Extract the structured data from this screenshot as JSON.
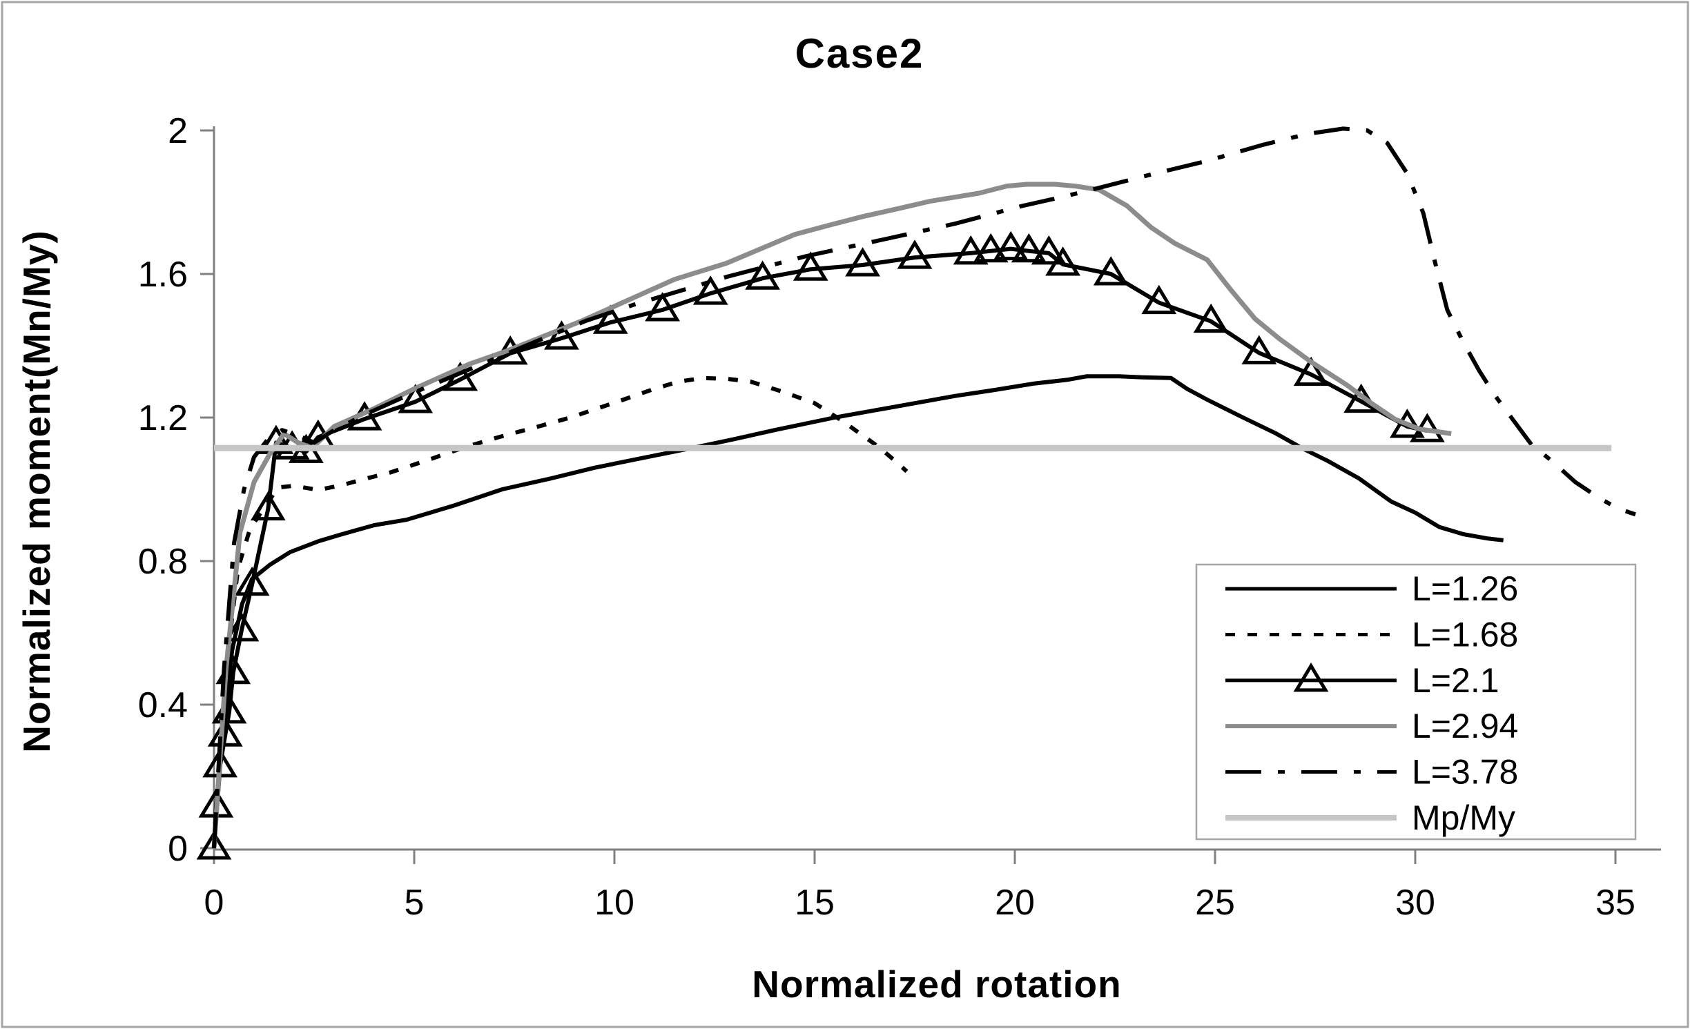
{
  "chart_data": {
    "type": "line",
    "title": "Case2",
    "xlabel": "Normalized rotation",
    "ylabel": "Normalized moment(Mn/My)",
    "xlim": [
      0,
      36.1
    ],
    "ylim": [
      0,
      2.01
    ],
    "x_ticks": [
      0,
      5,
      10,
      15,
      20,
      25,
      30,
      35
    ],
    "x_tick_labels": [
      "0",
      "5",
      "10",
      "15",
      "20",
      "25",
      "30",
      "35"
    ],
    "y_ticks": [
      0,
      0.4,
      0.8,
      1.2,
      1.6,
      2
    ],
    "y_tick_labels": [
      "0",
      "0.4",
      "0.8",
      "1.2",
      "1.6",
      "2"
    ],
    "grid": false,
    "legend_position": "bottom-right",
    "axis_color": "#808080",
    "series": [
      {
        "name": "L=1.26",
        "color": "#000000",
        "dash": "solid",
        "width": 6,
        "marker": "none",
        "points": [
          [
            0,
            0
          ],
          [
            0.2,
            0.3
          ],
          [
            0.45,
            0.55
          ],
          [
            0.7,
            0.68
          ],
          [
            0.95,
            0.75
          ],
          [
            1.4,
            0.79
          ],
          [
            1.9,
            0.825
          ],
          [
            2.6,
            0.855
          ],
          [
            3.2,
            0.875
          ],
          [
            4.0,
            0.9
          ],
          [
            4.8,
            0.915
          ],
          [
            6.0,
            0.955
          ],
          [
            7.2,
            1.0
          ],
          [
            8.4,
            1.03
          ],
          [
            9.5,
            1.06
          ],
          [
            10.6,
            1.085
          ],
          [
            11.8,
            1.112
          ],
          [
            13.0,
            1.14
          ],
          [
            14.0,
            1.165
          ],
          [
            15.5,
            1.2
          ],
          [
            17.0,
            1.23
          ],
          [
            18.5,
            1.26
          ],
          [
            19.5,
            1.277
          ],
          [
            20.5,
            1.295
          ],
          [
            21.3,
            1.305
          ],
          [
            21.8,
            1.315
          ],
          [
            22.6,
            1.315
          ],
          [
            23.2,
            1.312
          ],
          [
            23.9,
            1.31
          ],
          [
            24.3,
            1.28
          ],
          [
            24.8,
            1.25
          ],
          [
            25.7,
            1.2
          ],
          [
            26.5,
            1.157
          ],
          [
            27.2,
            1.113
          ],
          [
            27.8,
            1.08
          ],
          [
            28.6,
            1.03
          ],
          [
            29.4,
            0.966
          ],
          [
            30.0,
            0.935
          ],
          [
            30.6,
            0.895
          ],
          [
            31.2,
            0.875
          ],
          [
            31.8,
            0.863
          ],
          [
            32.2,
            0.858
          ]
        ]
      },
      {
        "name": "L=1.68",
        "color": "#000000",
        "dash": "dotted",
        "width": 6,
        "marker": "none",
        "points": [
          [
            0,
            0
          ],
          [
            0.3,
            0.5
          ],
          [
            0.6,
            0.78
          ],
          [
            0.9,
            0.89
          ],
          [
            1.2,
            0.94
          ],
          [
            1.6,
            1.005
          ],
          [
            2.0,
            1.01
          ],
          [
            2.6,
            0.998
          ],
          [
            3.2,
            1.012
          ],
          [
            3.8,
            1.03
          ],
          [
            4.4,
            1.047
          ],
          [
            5.3,
            1.08
          ],
          [
            6.2,
            1.115
          ],
          [
            7.1,
            1.145
          ],
          [
            8.0,
            1.172
          ],
          [
            8.9,
            1.2
          ],
          [
            10.1,
            1.245
          ],
          [
            11.0,
            1.28
          ],
          [
            11.6,
            1.3
          ],
          [
            12.2,
            1.31
          ],
          [
            12.8,
            1.308
          ],
          [
            13.4,
            1.3
          ],
          [
            14.2,
            1.272
          ],
          [
            15.0,
            1.24
          ],
          [
            15.7,
            1.19
          ],
          [
            16.2,
            1.15
          ],
          [
            16.6,
            1.118
          ],
          [
            17.0,
            1.08
          ],
          [
            17.3,
            1.05
          ]
        ]
      },
      {
        "name": "L=2.1",
        "color": "#000000",
        "dash": "solid",
        "width": 6,
        "marker": "triangle",
        "points": [
          [
            0,
            0
          ],
          [
            0.05,
            0.117
          ],
          [
            0.15,
            0.229
          ],
          [
            0.28,
            0.315
          ],
          [
            0.38,
            0.379
          ],
          [
            0.48,
            0.489
          ],
          [
            0.69,
            0.608
          ],
          [
            0.95,
            0.735
          ],
          [
            1.35,
            0.945
          ],
          [
            1.55,
            1.13
          ],
          [
            1.95,
            1.115
          ],
          [
            2.3,
            1.105
          ],
          [
            2.6,
            1.145
          ],
          [
            3.76,
            1.196
          ],
          [
            5.03,
            1.244
          ],
          [
            6.15,
            1.306
          ],
          [
            7.4,
            1.379
          ],
          [
            8.68,
            1.421
          ],
          [
            9.9,
            1.465
          ],
          [
            11.2,
            1.5
          ],
          [
            12.4,
            1.546
          ],
          [
            13.7,
            1.588
          ],
          [
            14.9,
            1.613
          ],
          [
            16.2,
            1.625
          ],
          [
            17.5,
            1.646
          ],
          [
            18.9,
            1.658
          ],
          [
            19.4,
            1.664
          ],
          [
            19.9,
            1.67
          ],
          [
            20.35,
            1.664
          ],
          [
            20.85,
            1.658
          ],
          [
            21.2,
            1.627
          ],
          [
            22.4,
            1.6
          ],
          [
            23.6,
            1.52
          ],
          [
            24.9,
            1.468
          ],
          [
            26.1,
            1.38
          ],
          [
            27.4,
            1.32
          ],
          [
            28.65,
            1.245
          ],
          [
            29.8,
            1.175
          ],
          [
            30.3,
            1.163
          ]
        ]
      },
      {
        "name": "L=2.94",
        "color": "#8c8c8c",
        "dash": "solid",
        "width": 7,
        "marker": "none",
        "points": [
          [
            0,
            0
          ],
          [
            0.3,
            0.5
          ],
          [
            0.65,
            0.88
          ],
          [
            1.0,
            1.02
          ],
          [
            1.4,
            1.1
          ],
          [
            1.75,
            1.155
          ],
          [
            2.1,
            1.13
          ],
          [
            2.45,
            1.115
          ],
          [
            3.0,
            1.175
          ],
          [
            4.0,
            1.225
          ],
          [
            5.0,
            1.28
          ],
          [
            6.4,
            1.35
          ],
          [
            7.3,
            1.385
          ],
          [
            8.2,
            1.425
          ],
          [
            9.2,
            1.47
          ],
          [
            10.1,
            1.515
          ],
          [
            11.5,
            1.585
          ],
          [
            12.8,
            1.63
          ],
          [
            14.5,
            1.71
          ],
          [
            15.4,
            1.737
          ],
          [
            16.2,
            1.76
          ],
          [
            17.0,
            1.78
          ],
          [
            17.9,
            1.803
          ],
          [
            19.1,
            1.825
          ],
          [
            19.8,
            1.845
          ],
          [
            20.3,
            1.85
          ],
          [
            21.0,
            1.85
          ],
          [
            21.5,
            1.845
          ],
          [
            22.1,
            1.835
          ],
          [
            22.8,
            1.79
          ],
          [
            23.4,
            1.73
          ],
          [
            24.0,
            1.685
          ],
          [
            24.8,
            1.64
          ],
          [
            25.4,
            1.555
          ],
          [
            26.0,
            1.475
          ],
          [
            26.6,
            1.42
          ],
          [
            27.4,
            1.355
          ],
          [
            28.3,
            1.29
          ],
          [
            28.9,
            1.24
          ],
          [
            29.5,
            1.195
          ],
          [
            30.1,
            1.168
          ],
          [
            30.9,
            1.155
          ]
        ]
      },
      {
        "name": "L=3.78",
        "color": "#000000",
        "dash": "dashdot",
        "width": 6,
        "marker": "none",
        "points": [
          [
            0,
            0
          ],
          [
            0.25,
            0.5
          ],
          [
            0.5,
            0.85
          ],
          [
            0.75,
            1.0
          ],
          [
            1.0,
            1.09
          ],
          [
            1.35,
            1.14
          ],
          [
            1.7,
            1.165
          ],
          [
            2.1,
            1.15
          ],
          [
            2.5,
            1.13
          ],
          [
            3.0,
            1.165
          ],
          [
            3.8,
            1.21
          ],
          [
            5.0,
            1.27
          ],
          [
            6.5,
            1.34
          ],
          [
            8.0,
            1.41
          ],
          [
            9.3,
            1.47
          ],
          [
            10.5,
            1.515
          ],
          [
            11.7,
            1.555
          ],
          [
            12.8,
            1.592
          ],
          [
            14.8,
            1.65
          ],
          [
            16.8,
            1.698
          ],
          [
            18.5,
            1.74
          ],
          [
            20.2,
            1.79
          ],
          [
            21.2,
            1.815
          ],
          [
            22.1,
            1.84
          ],
          [
            23.5,
            1.88
          ],
          [
            24.8,
            1.915
          ],
          [
            26.2,
            1.96
          ],
          [
            27.3,
            1.99
          ],
          [
            28.2,
            2.005
          ],
          [
            28.8,
            2.0
          ],
          [
            29.3,
            1.965
          ],
          [
            29.8,
            1.88
          ],
          [
            30.2,
            1.77
          ],
          [
            30.5,
            1.63
          ],
          [
            30.8,
            1.5
          ],
          [
            31.2,
            1.41
          ],
          [
            31.6,
            1.33
          ],
          [
            32.0,
            1.26
          ],
          [
            32.4,
            1.2
          ],
          [
            32.9,
            1.125
          ],
          [
            33.4,
            1.08
          ],
          [
            34.0,
            1.02
          ],
          [
            34.6,
            0.975
          ],
          [
            35.1,
            0.945
          ],
          [
            35.5,
            0.93
          ]
        ]
      },
      {
        "name": "Mp/My",
        "color": "#c6c6c6",
        "dash": "solid",
        "width": 9,
        "marker": "none",
        "points": [
          [
            0,
            1.115
          ],
          [
            34.9,
            1.115
          ]
        ]
      }
    ]
  }
}
